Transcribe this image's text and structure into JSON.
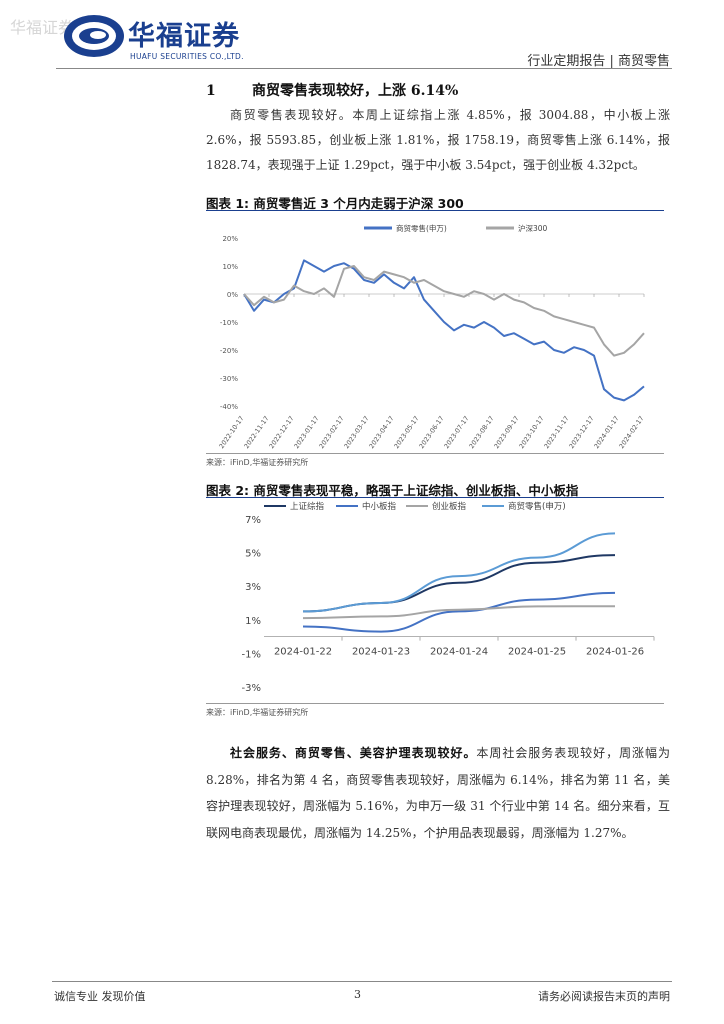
{
  "header": {
    "watermark": "华福证券",
    "brand_cn": "华福证券",
    "brand_en": "HUAFU SECURITIES CO.,LTD.",
    "report_type": "行业定期报告 | 商贸零售"
  },
  "section1": {
    "number": "1",
    "title": "商贸零售表现较好，上涨 6.14%",
    "paragraph": "商贸零售表现较好。本周上证综指上涨 4.85%，报 3004.88，中小板上涨 2.6%，报 5593.85，创业板上涨 1.81%，报 1758.19，商贸零售上涨 6.14%，报 1828.74，表现强于上证 1.29pct，强于中小板 3.54pct，强于创业板 4.32pct。"
  },
  "figure1": {
    "title": "图表 1:  商贸零售近 3 个月内走弱于沪深 300",
    "source": "来源：iFinD,华福证券研究所"
  },
  "figure2": {
    "title": "图表 2:  商贸零售表现平稳，略强于上证综指、创业板指、中小板指",
    "source": "来源：iFinD,华福证券研究所"
  },
  "summary": {
    "bold": "社会服务、商贸零售、美容护理表现较好。",
    "text": "本周社会服务表现较好，周涨幅为 8.28%，排名为第 4 名，商贸零售表现较好，周涨幅为 6.14%，排名为第 11 名，美容护理表现较好，周涨幅为 5.16%，为申万一级 31 个行业中第 14 名。细分来看，互联网电商表现最优，周涨幅为 14.25%，个护用品表现最弱，周涨幅为 1.27%。"
  },
  "footer": {
    "left": "诚信专业  发现价值",
    "page": "3",
    "right": "请务必阅读报告末页的声明"
  },
  "chart_data": [
    {
      "type": "line",
      "title": "商贸零售近 3 个月内走弱于沪深 300",
      "x_ticks": [
        "2022-10-17",
        "2022-11-17",
        "2022-12-17",
        "2023-01-17",
        "2023-02-17",
        "2023-03-17",
        "2023-04-17",
        "2023-05-17",
        "2023-06-17",
        "2023-07-17",
        "2023-08-17",
        "2023-09-17",
        "2023-10-17",
        "2023-11-17",
        "2023-12-17",
        "2024-01-17",
        "2024-02-17"
      ],
      "y_ticks": [
        "20%",
        "10%",
        "0%",
        "-10%",
        "-20%",
        "-30%",
        "-40%"
      ],
      "ylim": [
        -40,
        20
      ],
      "legend_position": "top",
      "series": [
        {
          "name": "商贸零售(申万)",
          "color": "#4472c4",
          "values": [
            0,
            -6,
            -2,
            -3,
            0,
            2,
            12,
            10,
            8,
            10,
            11,
            9,
            5,
            4,
            7,
            4,
            2,
            6,
            -2,
            -6,
            -10,
            -13,
            -11,
            -12,
            -10,
            -12,
            -15,
            -14,
            -16,
            -18,
            -17,
            -20,
            -21,
            -19,
            -20,
            -22,
            -34,
            -37,
            -38,
            -36,
            -33
          ]
        },
        {
          "name": "沪深300",
          "color": "#a5a5a5",
          "values": [
            0,
            -4,
            -1,
            -3,
            -2,
            3,
            1,
            0,
            2,
            -1,
            9,
            10,
            6,
            5,
            8,
            7,
            6,
            4,
            5,
            3,
            1,
            0,
            -1,
            1,
            0,
            -2,
            0,
            -2,
            -3,
            -5,
            -6,
            -8,
            -9,
            -10,
            -11,
            -12,
            -18,
            -22,
            -21,
            -18,
            -14
          ]
        }
      ]
    },
    {
      "type": "line",
      "title": "商贸零售表现平稳，略强于上证综指、创业板指、中小板指",
      "x": [
        "2024-01-22",
        "2024-01-23",
        "2024-01-24",
        "2024-01-25",
        "2024-01-26"
      ],
      "y_ticks": [
        "7%",
        "5%",
        "3%",
        "1%",
        "-1%",
        "-3%"
      ],
      "ylim": [
        -3,
        7
      ],
      "legend_position": "top",
      "series": [
        {
          "name": "上证综指",
          "color": "#1f3864",
          "values": [
            1.5,
            2.0,
            3.2,
            4.4,
            4.85
          ]
        },
        {
          "name": "中小板指",
          "color": "#4472c4",
          "values": [
            0.6,
            0.3,
            1.5,
            2.2,
            2.6
          ]
        },
        {
          "name": "创业板指",
          "color": "#a5a5a5",
          "values": [
            1.1,
            1.2,
            1.6,
            1.8,
            1.81
          ]
        },
        {
          "name": "商贸零售(申万)",
          "color": "#5b9bd5",
          "values": [
            1.5,
            2.0,
            3.6,
            4.7,
            6.14
          ]
        }
      ]
    }
  ]
}
